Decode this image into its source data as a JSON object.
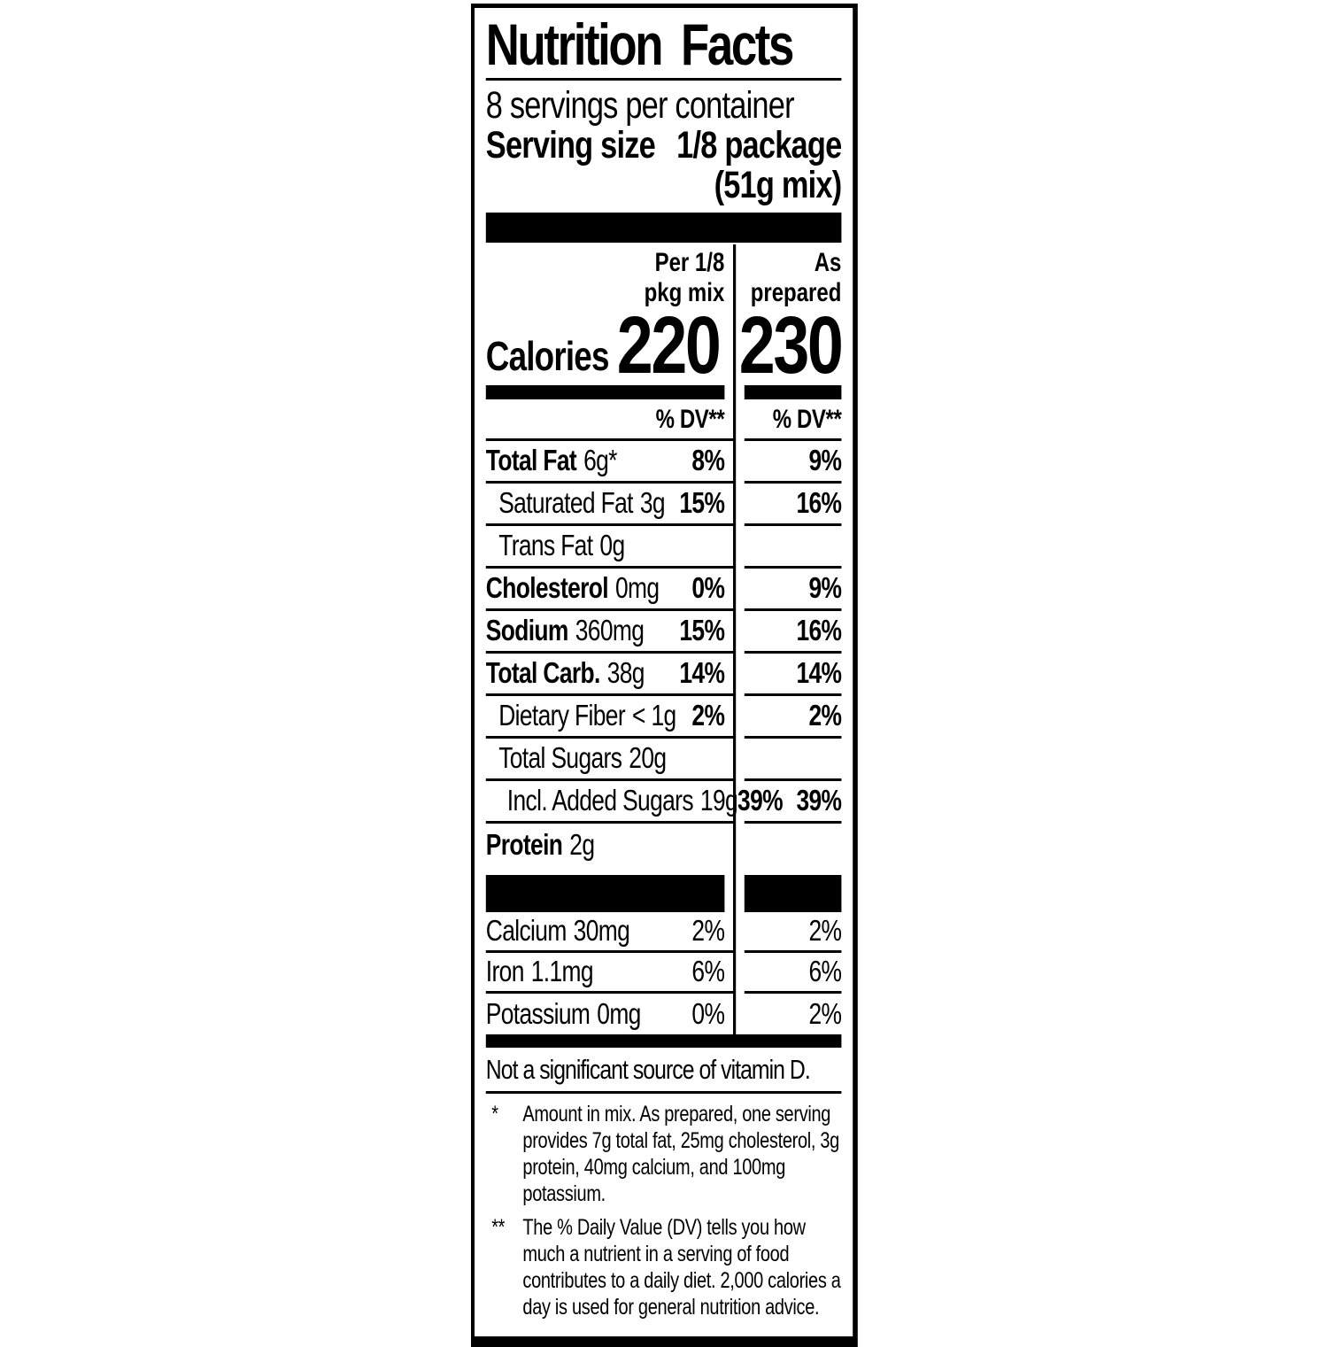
{
  "label": {
    "title": "Nutrition Facts",
    "servings_per_container": "8 servings per container",
    "serving_size_label": "Serving size",
    "serving_size_value": "1/8 package",
    "serving_size_extra": "(51g mix)",
    "columns": {
      "col1_line1": "Per 1/8",
      "col1_line2": "pkg mix",
      "col2_line1": "As",
      "col2_line2": "prepared"
    },
    "calories_label": "Calories",
    "calories_col1": "220",
    "calories_col2": "230",
    "dv_header": "% DV**",
    "rows": [
      {
        "name": "Total Fat",
        "amount": "6g*",
        "dv1": "8%",
        "dv2": "9%"
      },
      {
        "name": "Saturated Fat",
        "amount": "3g",
        "dv1": "15%",
        "dv2": "16%"
      },
      {
        "name": "Trans Fat",
        "amount": "0g",
        "dv1": "",
        "dv2": ""
      },
      {
        "name": "Cholesterol",
        "amount": "0mg",
        "dv1": "0%",
        "dv2": "9%"
      },
      {
        "name": "Sodium",
        "amount": "360mg",
        "dv1": "15%",
        "dv2": "16%"
      },
      {
        "name": "Total Carb.",
        "amount": "38g",
        "dv1": "14%",
        "dv2": "14%"
      },
      {
        "name": "Dietary Fiber",
        "amount": "< 1g",
        "dv1": "2%",
        "dv2": "2%"
      },
      {
        "name": "Total Sugars",
        "amount": "20g",
        "dv1": "",
        "dv2": ""
      },
      {
        "name": "Incl. Added Sugars",
        "amount": "19g",
        "dv1": "39%",
        "dv2": "39%"
      },
      {
        "name": "Protein",
        "amount": "2g",
        "dv1": "",
        "dv2": ""
      }
    ],
    "vitamin_rows": [
      {
        "name": "Calcium",
        "amount": "30mg",
        "dv1": "2%",
        "dv2": "2%"
      },
      {
        "name": "Iron",
        "amount": "1.1mg",
        "dv1": "6%",
        "dv2": "6%"
      },
      {
        "name": "Potassium",
        "amount": "0mg",
        "dv1": "0%",
        "dv2": "2%"
      }
    ],
    "not_significant": "Not a significant source of vitamin D.",
    "footnotes": [
      {
        "marker": "*",
        "text": "Amount in mix. As prepared, one serving provides 7g total fat, 25mg cholesterol, 3g protein, 40mg calcium, and 100mg potassium."
      },
      {
        "marker": "**",
        "text": "The % Daily Value (DV) tells you how much a nutrient in a serving of food contributes to a daily diet. 2,000 calories a day is used for general nutrition advice."
      }
    ],
    "colors": {
      "ink": "#000000",
      "background": "#ffffff"
    }
  }
}
